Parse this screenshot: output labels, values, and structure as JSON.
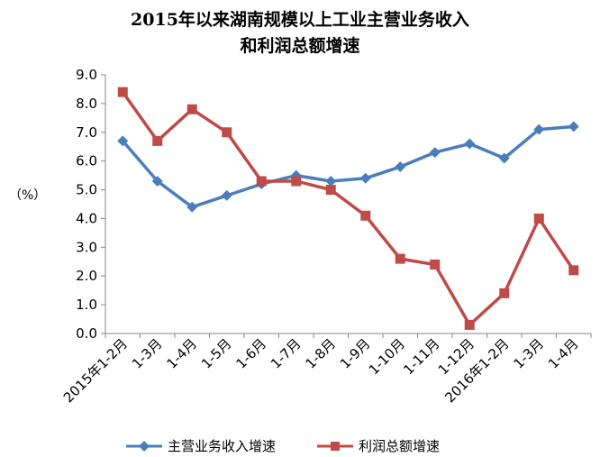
{
  "chart_data": {
    "type": "line",
    "title": "2015年以来湖南规模以上工业主营业务收入",
    "subtitle": "和利润总额增速",
    "ylabel": "（%）",
    "xlabel": "",
    "ylim": [
      0,
      9
    ],
    "ytick_step": 1,
    "ytick_labels": [
      "0.0",
      "1.0",
      "2.0",
      "3.0",
      "4.0",
      "5.0",
      "6.0",
      "7.0",
      "8.0",
      "9.0"
    ],
    "grid": false,
    "legend_position": "bottom",
    "categories": [
      "2015年1-2月",
      "1-3月",
      "1-4月",
      "1-5月",
      "1-6月",
      "1-7月",
      "1-8月",
      "1-9月",
      "1-10月",
      "1-11月",
      "1-12月",
      "2016年1-2月",
      "1-3月",
      "1-4月"
    ],
    "series": [
      {
        "name": "主营业务收入增速",
        "color": "#4a7ebb",
        "marker": "diamond",
        "values": [
          6.7,
          5.3,
          4.4,
          4.8,
          5.2,
          5.5,
          5.3,
          5.4,
          5.8,
          6.3,
          6.6,
          6.1,
          7.1,
          7.2
        ]
      },
      {
        "name": "利润总额增速",
        "color": "#be4b48",
        "marker": "square",
        "values": [
          8.4,
          6.7,
          7.8,
          7.0,
          5.3,
          5.3,
          5.0,
          4.1,
          2.6,
          2.4,
          0.3,
          1.4,
          4.0,
          2.2
        ]
      }
    ]
  }
}
